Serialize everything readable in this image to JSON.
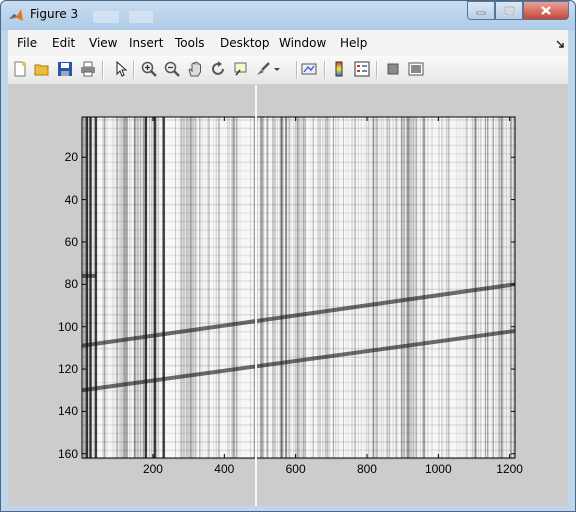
{
  "window": {
    "title": "Figure 3"
  },
  "menubar": {
    "items": [
      "File",
      "Edit",
      "View",
      "Insert",
      "Tools",
      "Desktop",
      "Window",
      "Help"
    ]
  },
  "toolbar": {
    "buttons": [
      "new-figure",
      "open-file",
      "save-figure",
      "print-figure",
      "edit-plot",
      "zoom-in",
      "zoom-out",
      "pan",
      "rotate-3d",
      "data-cursor",
      "brush",
      "link-plot",
      "colorbar",
      "legend",
      "hide-plot-tools",
      "show-plot-tools"
    ]
  },
  "axes": {
    "y_ticks": [
      "20",
      "40",
      "60",
      "80",
      "100",
      "120",
      "140",
      "160"
    ],
    "x_ticks": [
      "200",
      "400",
      "600",
      "800",
      "1000",
      "1200"
    ]
  },
  "chart_data": {
    "type": "heatmap",
    "colormap": "gray",
    "xlim": [
      1,
      1215
    ],
    "ylim": [
      1,
      162
    ],
    "y_reversed": true,
    "xticks": [
      200,
      400,
      600,
      800,
      1000,
      1200
    ],
    "yticks": [
      20,
      40,
      60,
      80,
      100,
      120,
      140,
      160
    ],
    "dark_bands": [
      {
        "y_at_x1": 76,
        "y_at_x1215": 76,
        "x_range": [
          1,
          40
        ]
      },
      {
        "y_at_x1": 109,
        "y_at_x1215": 80
      },
      {
        "y_at_x1": 130,
        "y_at_x1215": 102
      }
    ],
    "dark_columns": [
      15,
      25,
      40,
      180,
      205,
      230
    ],
    "colors": {
      "background": "#cccccc",
      "axes_box": "#000000"
    }
  }
}
